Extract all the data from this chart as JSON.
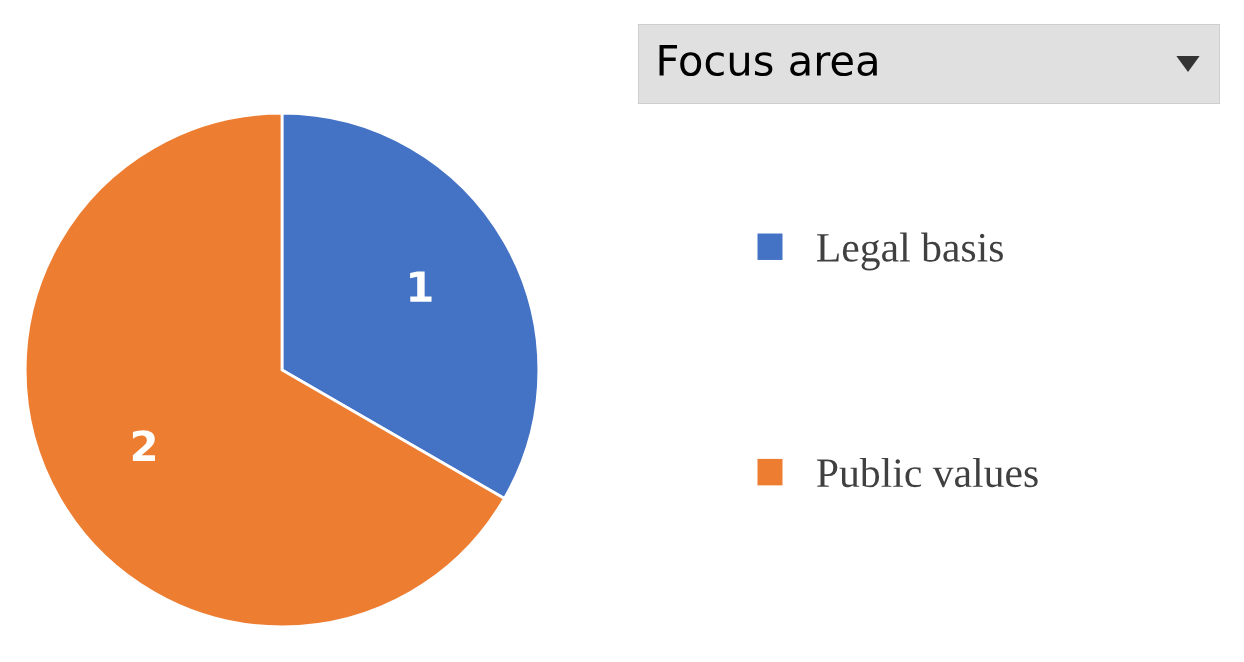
{
  "chart_data": {
    "type": "pie",
    "legend_title": "Focus area",
    "categories": [
      "Legal basis",
      "Public values"
    ],
    "values": [
      1,
      2
    ],
    "colors": [
      "#4472c4",
      "#ed7d31"
    ],
    "data_labels": true,
    "legend": "right"
  }
}
